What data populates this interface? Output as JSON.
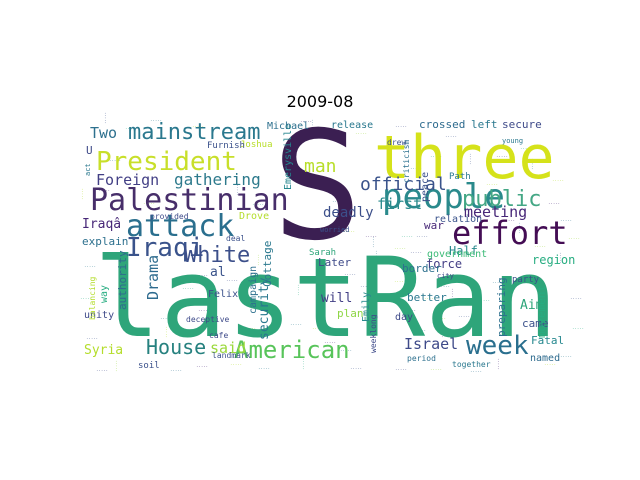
{
  "title": "2009-08",
  "words": [
    {
      "text": "S",
      "color": "#3b1f52"
    },
    {
      "text": "lastRan",
      "color": "#2ea57a"
    },
    {
      "text": "three",
      "color": "#d5e21a"
    },
    {
      "text": "Palestinian",
      "color": "#472e6a"
    },
    {
      "text": "people",
      "color": "#2a8a8c"
    },
    {
      "text": "attack",
      "color": "#2a6f8e"
    },
    {
      "text": "effort",
      "color": "#440d54"
    },
    {
      "text": "President",
      "color": "#c8df2a"
    },
    {
      "text": "American",
      "color": "#58c45a"
    },
    {
      "text": "Iraqi",
      "color": "#3a538b"
    },
    {
      "text": "week",
      "color": "#2a6f8e"
    },
    {
      "text": "public",
      "color": "#44a785"
    },
    {
      "text": "mainstream",
      "color": "#2a788e"
    },
    {
      "text": "White",
      "color": "#3c4f8a"
    },
    {
      "text": "House",
      "color": "#26817f"
    },
    {
      "text": "official",
      "color": "#3a538b"
    },
    {
      "text": "Foreign",
      "color": "#423f85"
    },
    {
      "text": "gathering",
      "color": "#2d7a8c"
    },
    {
      "text": "meeting",
      "color": "#482878"
    },
    {
      "text": "man",
      "color": "#b8de29"
    },
    {
      "text": "Two",
      "color": "#2d708e"
    },
    {
      "text": "Israel",
      "color": "#3e4a89"
    },
    {
      "text": "Drama",
      "color": "#2e6b8e"
    },
    {
      "text": "said",
      "color": "#9bd93c"
    },
    {
      "text": "first",
      "color": "#2a8a8c"
    },
    {
      "text": "deadly",
      "color": "#3c4f8a"
    },
    {
      "text": "Syria",
      "color": "#b4dd2c"
    },
    {
      "text": "security",
      "color": "#2a788e"
    },
    {
      "text": "al",
      "color": "#3a538b"
    },
    {
      "text": "Iraqâ",
      "color": "#482878"
    },
    {
      "text": "Half",
      "color": "#2a8a8c"
    },
    {
      "text": "force",
      "color": "#433e85"
    },
    {
      "text": "region",
      "color": "#27ad81"
    },
    {
      "text": "will",
      "color": "#423f85"
    },
    {
      "text": "Aim",
      "color": "#2ea57a"
    },
    {
      "text": "came",
      "color": "#3b518b"
    },
    {
      "text": "Fatal",
      "color": "#24878e"
    },
    {
      "text": "named",
      "color": "#2e6b8e"
    },
    {
      "text": "Later",
      "color": "#3e4a89"
    },
    {
      "text": "better",
      "color": "#2a788e"
    },
    {
      "text": "plan",
      "color": "#8ed645"
    },
    {
      "text": "Cottage",
      "color": "#2a788e"
    },
    {
      "text": "government",
      "color": "#3aba76"
    },
    {
      "text": "border",
      "color": "#2d708e"
    },
    {
      "text": "war",
      "color": "#482878"
    },
    {
      "text": "explain",
      "color": "#2d708e"
    },
    {
      "text": "authority",
      "color": "#2e6b8e"
    },
    {
      "text": "campaign",
      "color": "#2d708e"
    },
    {
      "text": "Felix",
      "color": "#3b518b"
    },
    {
      "text": "U",
      "color": "#3e4a89"
    },
    {
      "text": "Emerysville",
      "color": "#24868e"
    },
    {
      "text": "Michael",
      "color": "#2d708e"
    },
    {
      "text": "release",
      "color": "#2a788e"
    },
    {
      "text": "crossed",
      "color": "#2e6b8e"
    },
    {
      "text": "left",
      "color": "#2a788e"
    },
    {
      "text": "secure",
      "color": "#3e4a89"
    },
    {
      "text": "Joshua",
      "color": "#b8de29"
    },
    {
      "text": "Furnish",
      "color": "#3b518b"
    },
    {
      "text": "Drove",
      "color": "#b4dd2c"
    },
    {
      "text": "provided",
      "color": "#3e4a89"
    },
    {
      "text": "Sarah",
      "color": "#2ea57a"
    },
    {
      "text": "peace",
      "color": "#3b518b"
    },
    {
      "text": "relation",
      "color": "#3a538b"
    },
    {
      "text": "Path",
      "color": "#2a788e"
    },
    {
      "text": "day",
      "color": "#3e4a89"
    },
    {
      "text": "Emily",
      "color": "#2a8a8c"
    },
    {
      "text": "preparing",
      "color": "#2d708e"
    },
    {
      "text": "movement",
      "color": "#27ad81"
    },
    {
      "text": "party",
      "color": "#3b518b"
    },
    {
      "text": "way",
      "color": "#27ad81"
    },
    {
      "text": "unity",
      "color": "#3e4a89"
    },
    {
      "text": "soil",
      "color": "#3b518b"
    },
    {
      "text": "deceptive",
      "color": "#3e4a89"
    },
    {
      "text": "landmark",
      "color": "#3b518b"
    },
    {
      "text": "cafe",
      "color": "#3e4a89"
    },
    {
      "text": "deal",
      "color": "#3b518b"
    },
    {
      "text": "period",
      "color": "#2d708e"
    },
    {
      "text": "together",
      "color": "#2a788e"
    },
    {
      "text": "balancing",
      "color": "#b4dd2c"
    },
    {
      "text": "criticism",
      "color": "#2d708e"
    },
    {
      "text": "worried",
      "color": "#3b518b"
    },
    {
      "text": "act",
      "color": "#2a788e"
    },
    {
      "text": "city",
      "color": "#3e4a89"
    },
    {
      "text": "drew",
      "color": "#3b518b"
    },
    {
      "text": "young",
      "color": "#2a788e"
    },
    {
      "text": "weeklong",
      "color": "#3e4a89"
    }
  ]
}
